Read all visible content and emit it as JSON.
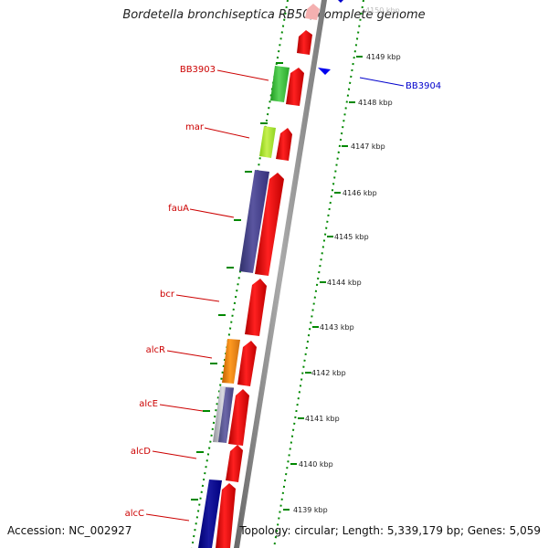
{
  "title": "Bordetella bronchiseptica RB50, complete genome",
  "accession": "Accession: NC_002927",
  "topology": "Topology: circular; Length: 5,339,179 bp; Genes: 5,059",
  "colors": {
    "gene_label": "#cc0000",
    "highlight_label": "#0000cc",
    "gene_red": "#ff0000",
    "backbone": "#888888",
    "ticks": "#008800"
  },
  "kbp_ticks": [
    "4150 kbp",
    "4149 kbp",
    "4148 kbp",
    "4147 kbp",
    "4146 kbp",
    "4145 kbp",
    "4144 kbp",
    "4143 kbp",
    "4142 kbp",
    "4141 kbp",
    "4140 kbp",
    "4139 kbp"
  ],
  "gene_labels": [
    {
      "name": "BB3903",
      "color": "#cc0000"
    },
    {
      "name": "mar",
      "color": "#cc0000"
    },
    {
      "name": "fauA",
      "color": "#cc0000"
    },
    {
      "name": "bcr",
      "color": "#cc0000"
    },
    {
      "name": "alcR",
      "color": "#cc0000"
    },
    {
      "name": "alcE",
      "color": "#cc0000"
    },
    {
      "name": "alcD",
      "color": "#cc0000"
    },
    {
      "name": "alcC",
      "color": "#cc0000"
    }
  ],
  "highlight_gene": {
    "name": "BB3904",
    "color": "#0000cc"
  }
}
